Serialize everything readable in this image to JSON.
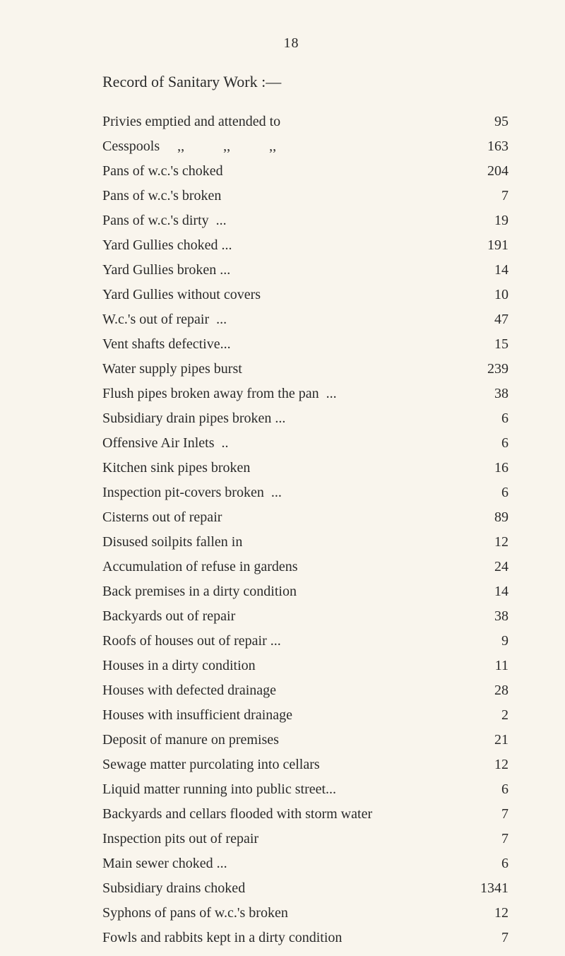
{
  "pageNumber": "18",
  "title": "Record of Sanitary Work :—",
  "entries": [
    {
      "label": "Privies emptied and attended to",
      "value": "95"
    },
    {
      "label": "Cesspools     ,,           ,,           ,,",
      "value": "163"
    },
    {
      "label": "Pans of w.c.'s choked",
      "value": "204"
    },
    {
      "label": "Pans of w.c.'s broken",
      "value": "7"
    },
    {
      "label": "Pans of w.c.'s dirty  ...",
      "value": "19"
    },
    {
      "label": "Yard Gullies choked ...",
      "value": "191"
    },
    {
      "label": "Yard Gullies broken ...",
      "value": "14"
    },
    {
      "label": "Yard Gullies without covers",
      "value": "10"
    },
    {
      "label": "W.c.'s out of repair  ...",
      "value": "47"
    },
    {
      "label": "Vent shafts defective...",
      "value": "15"
    },
    {
      "label": "Water supply pipes burst",
      "value": "239"
    },
    {
      "label": "Flush pipes broken away from the pan  ...",
      "value": "38"
    },
    {
      "label": "Subsidiary drain pipes broken ...",
      "value": "6"
    },
    {
      "label": "Offensive Air Inlets  ..",
      "value": "6"
    },
    {
      "label": "Kitchen sink pipes broken",
      "value": "16"
    },
    {
      "label": "Inspection pit-covers broken  ...",
      "value": "6"
    },
    {
      "label": "Cisterns out of repair",
      "value": "89"
    },
    {
      "label": "Disused soilpits fallen in",
      "value": "12"
    },
    {
      "label": "Accumulation of refuse in gardens",
      "value": "24"
    },
    {
      "label": "Back premises in a dirty condition",
      "value": "14"
    },
    {
      "label": "Backyards out of repair",
      "value": "38"
    },
    {
      "label": "Roofs of houses out of repair ...",
      "value": "9"
    },
    {
      "label": "Houses in a dirty condition",
      "value": "11"
    },
    {
      "label": "Houses with defected drainage",
      "value": "28"
    },
    {
      "label": "Houses with insufficient drainage",
      "value": "2"
    },
    {
      "label": "Deposit of manure on premises",
      "value": "21"
    },
    {
      "label": "Sewage matter purcolating into cellars",
      "value": "12"
    },
    {
      "label": "Liquid matter running into public street...",
      "value": "6"
    },
    {
      "label": "Backyards and cellars flooded with storm water",
      "value": "7"
    },
    {
      "label": "Inspection pits out of repair",
      "value": "7"
    },
    {
      "label": "Main sewer choked ...",
      "value": "6"
    },
    {
      "label": "Subsidiary drains choked",
      "value": "1341"
    },
    {
      "label": "Syphons of pans of w.c.'s broken",
      "value": "12"
    },
    {
      "label": "Fowls and rabbits kept in a dirty condition",
      "value": "7"
    }
  ],
  "styling": {
    "backgroundColor": "#f9f5ed",
    "textColor": "#2a2a2a",
    "fontFamily": "Georgia, serif",
    "fontSize": 20,
    "titleFontSize": 22,
    "pageWidth": 800,
    "pageHeight": 1353,
    "lineSpacing": 12
  }
}
